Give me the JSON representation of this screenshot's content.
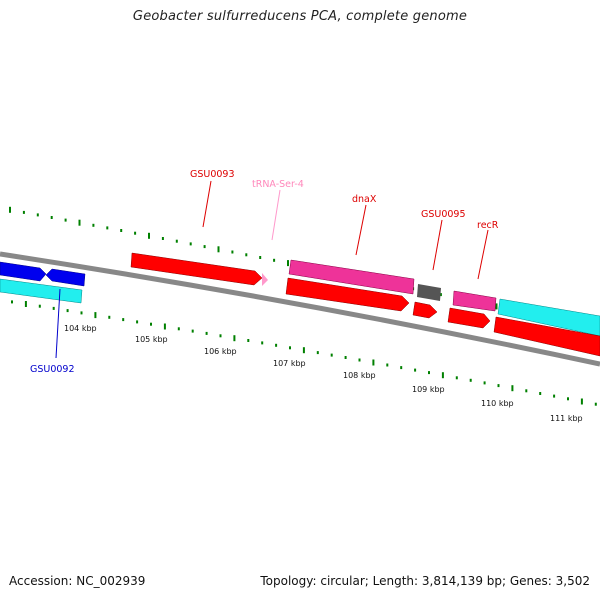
{
  "title": "Geobacter sulfurreducens PCA, complete genome",
  "footer": {
    "accession": "Accession: NC_002939",
    "summary": "Topology: circular; Length: 3,814,139 bp; Genes: 3,502"
  },
  "colors": {
    "red_gene": "#ff0000",
    "magenta_gene": "#ee3399",
    "cyan_gene": "#22eeee",
    "blue_gene": "#0000ee",
    "gray_gene": "#555555",
    "trna": "#ff99cc",
    "tick": "#008000",
    "backbone": "#888888"
  },
  "kbp_labels": [
    "104 kbp",
    "105 kbp",
    "106 kbp",
    "107 kbp",
    "108 kbp",
    "109 kbp",
    "110 kbp",
    "111 kbp"
  ],
  "gene_labels": [
    {
      "text": "GSU0093",
      "color": "#dd0000"
    },
    {
      "text": "tRNA-Ser-4",
      "color": "#ff88bb"
    },
    {
      "text": "dnaX",
      "color": "#dd0000"
    },
    {
      "text": "GSU0095",
      "color": "#dd0000"
    },
    {
      "text": "recR",
      "color": "#dd0000"
    },
    {
      "text": "GSU0092",
      "color": "#0000cc"
    }
  ]
}
